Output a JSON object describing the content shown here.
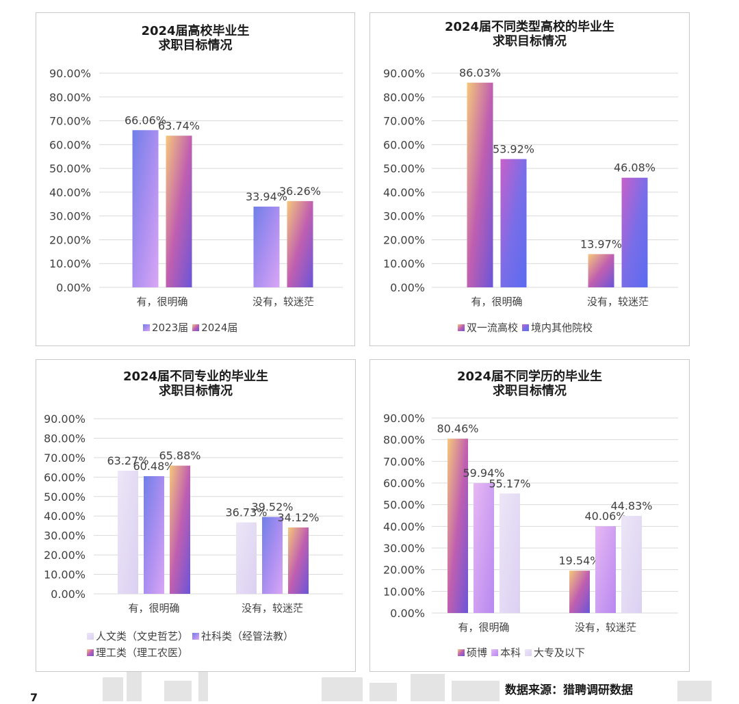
{
  "palette": {
    "blue_purple": [
      "#6f7fe8",
      "#a98ef0",
      "#d9a6f5"
    ],
    "orange_purple": [
      "#f5c87a",
      "#c05fb0",
      "#6a55d8"
    ],
    "magenta_blue": [
      "#c860c8",
      "#7a6de8",
      "#5a6cf0"
    ],
    "light_lilac": [
      "#ece6f6",
      "#dcd0f2"
    ],
    "lilac": [
      "#e7b8f3",
      "#b788f0"
    ]
  },
  "source_text": "数据来源：猎聘调研数据",
  "page_number": "7",
  "chart_data": [
    {
      "type": "bar",
      "title_lines": [
        "2024届高校毕业生",
        "求职目标情况"
      ],
      "categories": [
        "有，很明确",
        "没有，较迷茫"
      ],
      "ylim": [
        0,
        90
      ],
      "yticks": [
        "90.00%",
        "80.00%",
        "70.00%",
        "60.00%",
        "50.00%",
        "40.00%",
        "30.00%",
        "20.00%",
        "10.00%",
        "0.00%"
      ],
      "series": [
        {
          "name": "2023届",
          "values": [
            66.06,
            33.94
          ],
          "labels": [
            "66.06%",
            "33.94%"
          ],
          "fill": "blue_purple"
        },
        {
          "name": "2024届",
          "values": [
            63.74,
            36.26
          ],
          "labels": [
            "63.74%",
            "36.26%"
          ],
          "fill": "orange_purple"
        }
      ],
      "legend": "bottom"
    },
    {
      "type": "bar",
      "title_lines": [
        "2024届不同类型高校的毕业生",
        "求职目标情况"
      ],
      "categories": [
        "有，很明确",
        "没有，较迷茫"
      ],
      "ylim": [
        0,
        90
      ],
      "yticks": [
        "90.00%",
        "80.00%",
        "70.00%",
        "60.00%",
        "50.00%",
        "40.00%",
        "30.00%",
        "20.00%",
        "10.00%",
        "0.00%"
      ],
      "series": [
        {
          "name": "双一流高校",
          "values": [
            86.03,
            13.97
          ],
          "labels": [
            "86.03%",
            "13.97%"
          ],
          "fill": "orange_purple"
        },
        {
          "name": "境内其他院校",
          "values": [
            53.92,
            46.08
          ],
          "labels": [
            "53.92%",
            "46.08%"
          ],
          "fill": "magenta_blue"
        }
      ],
      "legend": "bottom"
    },
    {
      "type": "bar",
      "title_lines": [
        "2024届不同专业的毕业生",
        "求职目标情况"
      ],
      "categories": [
        "有，很明确",
        "没有，较迷茫"
      ],
      "ylim": [
        0,
        90
      ],
      "yticks": [
        "90.00%",
        "80.00%",
        "70.00%",
        "60.00%",
        "50.00%",
        "40.00%",
        "30.00%",
        "20.00%",
        "10.00%",
        "0.00%"
      ],
      "series": [
        {
          "name": "人文类（文史哲艺）",
          "values": [
            63.27,
            36.73
          ],
          "labels": [
            "63.27%",
            "36.73%"
          ],
          "fill": "light_lilac"
        },
        {
          "name": "社科类（经管法教）",
          "values": [
            60.48,
            39.52
          ],
          "labels": [
            "60.48%",
            "39.52%"
          ],
          "fill": "blue_purple"
        },
        {
          "name": "理工类（理工农医）",
          "values": [
            65.88,
            34.12
          ],
          "labels": [
            "65.88%",
            "34.12%"
          ],
          "fill": "orange_purple"
        }
      ],
      "legend": "bottom"
    },
    {
      "type": "bar",
      "title_lines": [
        "2024届不同学历的毕业生",
        "求职目标情况"
      ],
      "categories": [
        "有，很明确",
        "没有，较迷茫"
      ],
      "ylim": [
        0,
        90
      ],
      "yticks": [
        "90.00%",
        "80.00%",
        "70.00%",
        "60.00%",
        "50.00%",
        "40.00%",
        "30.00%",
        "20.00%",
        "10.00%",
        "0.00%"
      ],
      "series": [
        {
          "name": "硕博",
          "values": [
            80.46,
            19.54
          ],
          "labels": [
            "80.46%",
            "19.54%"
          ],
          "fill": "orange_purple"
        },
        {
          "name": "本科",
          "values": [
            59.94,
            40.06
          ],
          "labels": [
            "59.94%",
            "40.06%"
          ],
          "fill": "lilac"
        },
        {
          "name": "大专及以下",
          "values": [
            55.17,
            44.83
          ],
          "labels": [
            "55.17%",
            "44.83%"
          ],
          "fill": "light_lilac"
        }
      ],
      "legend": "bottom"
    }
  ]
}
